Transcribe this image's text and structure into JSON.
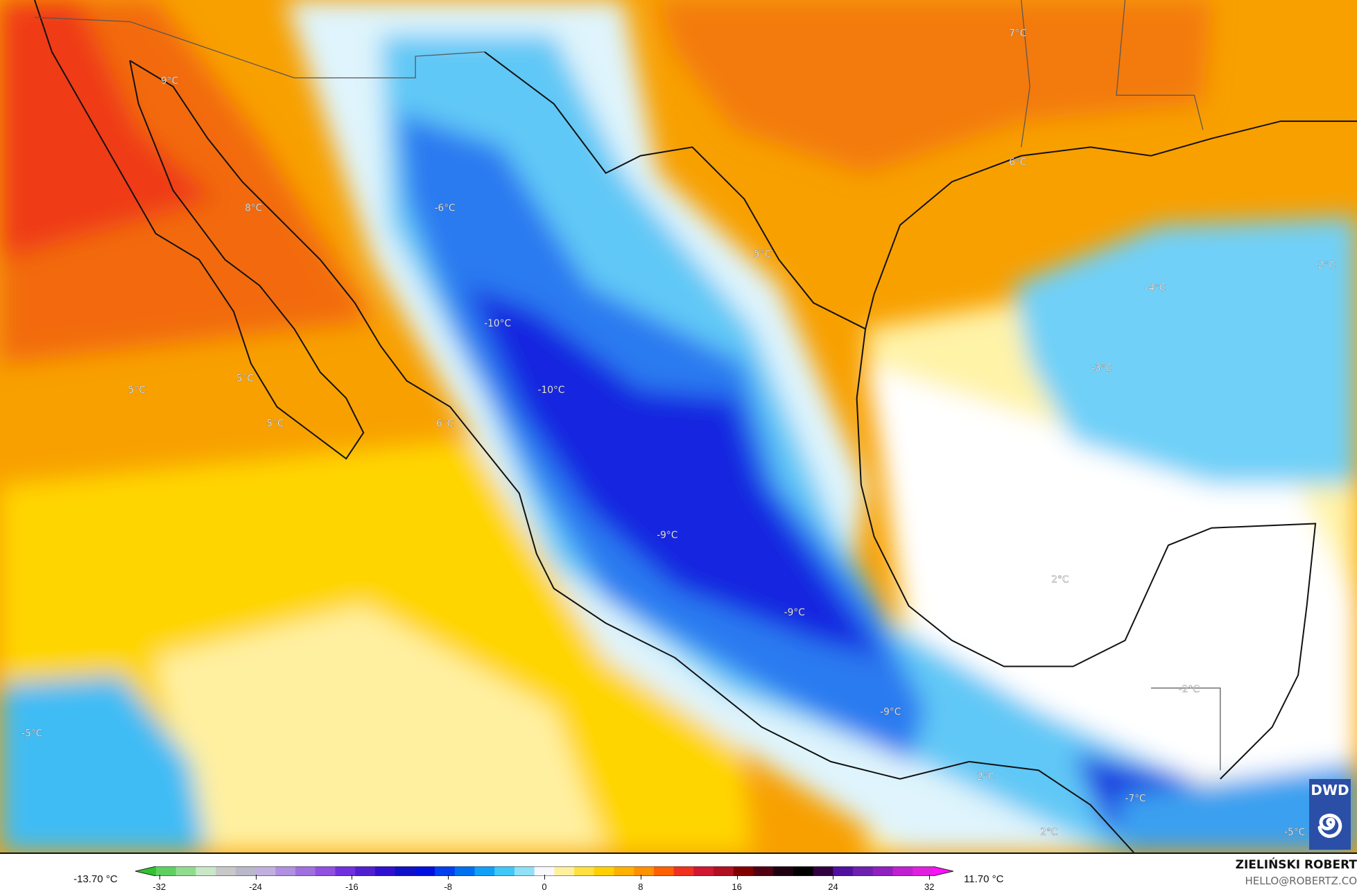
{
  "map": {
    "variable_unit": "°C",
    "labels": [
      {
        "text": "7°C",
        "lon_lat_hint": "Arkansas/Louisiana"
      },
      {
        "text": "9°C",
        "lon_lat_hint": "Arizona"
      },
      {
        "text": "6°C",
        "lon_lat_hint": "East Texas"
      },
      {
        "text": "8°C",
        "lon_lat_hint": "Sonora"
      },
      {
        "text": "-6°C",
        "lon_lat_hint": "Chihuahua"
      },
      {
        "text": "5°C",
        "lon_lat_hint": "South Texas"
      },
      {
        "text": "-2°C",
        "lon_lat_hint": "East Gulf"
      },
      {
        "text": "-4°C",
        "lon_lat_hint": "Central Gulf"
      },
      {
        "text": "-10°C",
        "lon_lat_hint": "Sierra Madre Occidental"
      },
      {
        "text": "-3°C",
        "lon_lat_hint": "Gulf"
      },
      {
        "text": "5°C",
        "lon_lat_hint": "Baja California"
      },
      {
        "text": "5°C",
        "lon_lat_hint": "Pacific"
      },
      {
        "text": "-10°C",
        "lon_lat_hint": "Durango"
      },
      {
        "text": "5°C",
        "lon_lat_hint": "Baja Sur"
      },
      {
        "text": "6°C",
        "lon_lat_hint": "Sinaloa coast"
      },
      {
        "text": "-9°C",
        "lon_lat_hint": "Central Mexico"
      },
      {
        "text": "2°C",
        "lon_lat_hint": "Bay of Campeche"
      },
      {
        "text": "-9°C",
        "lon_lat_hint": "Mexico City"
      },
      {
        "text": "-2°C",
        "lon_lat_hint": "Yucatan"
      },
      {
        "text": "-9°C",
        "lon_lat_hint": "Oaxaca"
      },
      {
        "text": "-5°C",
        "lon_lat_hint": "Far Pacific"
      },
      {
        "text": "2°C",
        "lon_lat_hint": "Tehuantepec"
      },
      {
        "text": "-7°C",
        "lon_lat_hint": "Guatemala"
      },
      {
        "text": "2°C",
        "lon_lat_hint": "Pacific south"
      },
      {
        "text": "-5°C",
        "lon_lat_hint": "Honduras"
      }
    ]
  },
  "legend": {
    "min_label": "-13.70 °C",
    "max_label": "11.70 °C",
    "ticks": [
      "-32",
      "-24",
      "-16",
      "-8",
      "0",
      "8",
      "16",
      "24",
      "32"
    ],
    "range": [
      -34,
      34
    ],
    "colors": [
      "#2fc42f",
      "#5fd05f",
      "#8fdc8f",
      "#c8e8c8",
      "#c8c8c8",
      "#b8b8c8",
      "#c0b0e0",
      "#b090e0",
      "#a070e0",
      "#9050e0",
      "#7030e0",
      "#5020d0",
      "#3010d0",
      "#1010c8",
      "#0010e0",
      "#0040f0",
      "#0070f0",
      "#10a0f8",
      "#40c8f8",
      "#90e0f8",
      "#f8f8ff",
      "#fff0a0",
      "#ffe040",
      "#ffd000",
      "#ffb000",
      "#ff9000",
      "#ff6000",
      "#f03020",
      "#d01830",
      "#b01020",
      "#800000",
      "#500010",
      "#200010",
      "#000000",
      "#300040",
      "#5010a0",
      "#7020b0",
      "#9020c0",
      "#c020d0",
      "#e020e0",
      "#ff10ff"
    ]
  },
  "credits": {
    "author": "ZIELIŃSKI ROBERT",
    "email": "HELLO@ROBERTZ.CO",
    "logo_text": "DWD"
  }
}
